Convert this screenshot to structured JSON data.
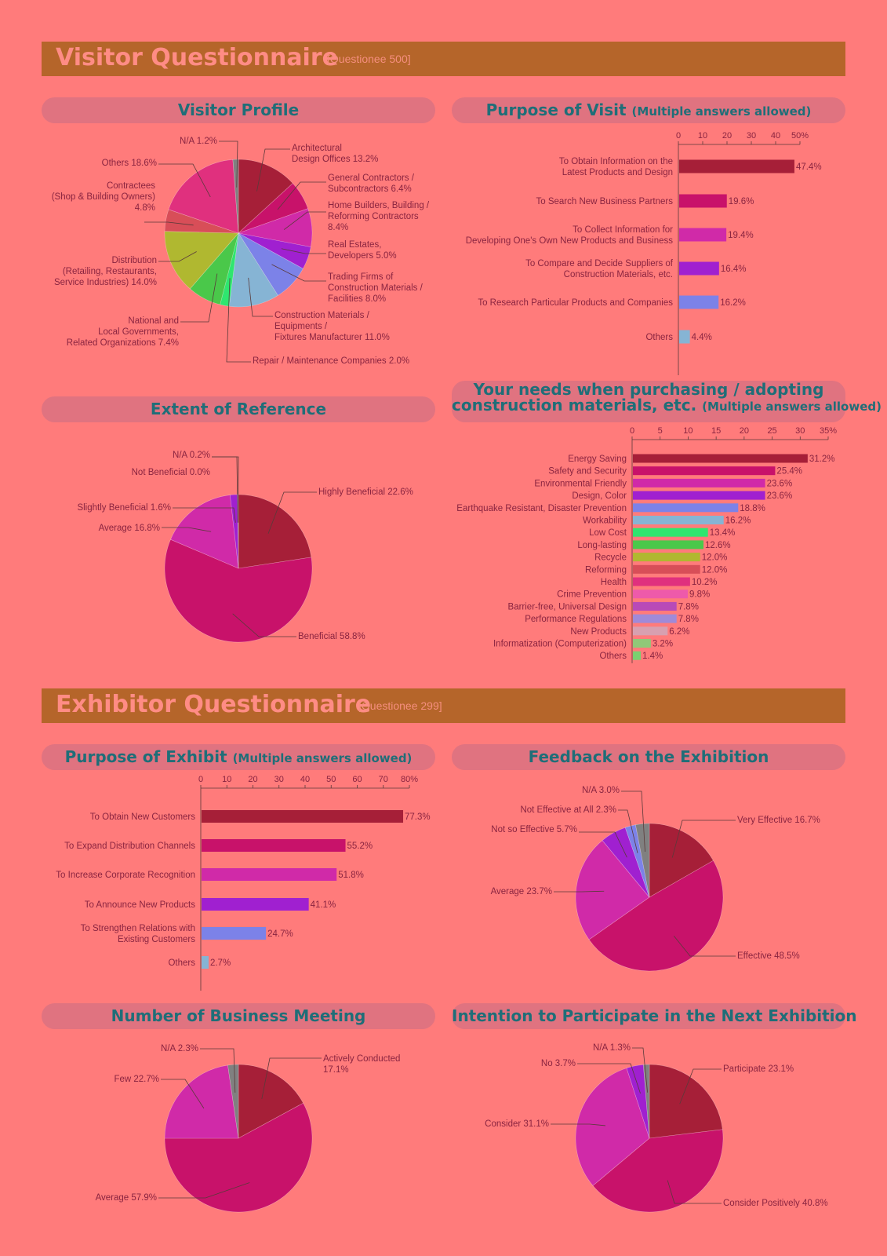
{
  "visitor_section": {
    "title": "Visitor Questionnaire",
    "note": "[Questionee 500]"
  },
  "exhibitor_section": {
    "title": "Exhibitor Questionnaire",
    "note": "[Questionee 299]"
  },
  "colors": {
    "background": "#FF7B7B",
    "banner": "#B5652A",
    "heading_text": "#1F6E78",
    "label_text": "#8A2440"
  },
  "chart_data": [
    {
      "id": "visitor_profile",
      "type": "pie",
      "title": "Visitor Profile",
      "slices": [
        {
          "label": "Architectural\nDesign Offices  13.2%",
          "value": 13.2,
          "color": "#A61F38"
        },
        {
          "label": "General Contractors /\nSubcontractors  6.4%",
          "value": 6.4,
          "color": "#C8126A"
        },
        {
          "label": "Home Builders, Building /\nReforming Contractors\n8.4%",
          "value": 8.4,
          "color": "#D02AA8"
        },
        {
          "label": "Real Estates,\nDevelopers  5.0%",
          "value": 5.0,
          "color": "#A020D0"
        },
        {
          "label": "Trading Firms of\nConstruction Materials /\nFacilities  8.0%",
          "value": 8.0,
          "color": "#7C82E8"
        },
        {
          "label": "Construction Materials /\nEquipments /\nFixtures Manufacturer  11.0%",
          "value": 11.0,
          "color": "#86B4D4"
        },
        {
          "label": "Repair / Maintenance Companies  2.0%",
          "value": 2.0,
          "color": "#2FE66F"
        },
        {
          "label": "National and\nLocal Governments,\nRelated Organizations  7.4%",
          "value": 7.4,
          "color": "#4AC84A"
        },
        {
          "label": "Distribution\n(Retailing, Restaurants,\nService Industries)  14.0%",
          "value": 14.0,
          "color": "#B0B830"
        },
        {
          "label": "Contractees\n(Shop & Building Owners)\n4.8%",
          "value": 4.8,
          "color": "#D84E58"
        },
        {
          "label": "Others  18.6%",
          "value": 18.6,
          "color": "#E0307E"
        },
        {
          "label": "N/A  1.2%",
          "value": 1.2,
          "color": "#808080"
        }
      ]
    },
    {
      "id": "purpose_of_visit",
      "type": "bar",
      "orientation": "horizontal",
      "title": "Purpose of Visit",
      "subtitle": "(Multiple answers allowed)",
      "xlim": [
        0,
        50
      ],
      "ticks": [
        0,
        10,
        20,
        30,
        40,
        50
      ],
      "tick_suffix_last": "%",
      "categories": [
        "To Obtain Information on the\nLatest Products and Design",
        "To Search New Business Partners",
        "To Collect Information for\nDeveloping One's Own New Products and Business",
        "To Compare and Decide Suppliers of\nConstruction Materials, etc.",
        "To Research Particular Products and Companies",
        "Others"
      ],
      "values": [
        47.4,
        19.6,
        19.4,
        16.4,
        16.2,
        4.4
      ],
      "labels": [
        "47.4%",
        "19.6%",
        "19.4%",
        "16.4%",
        "16.2%",
        "4.4%"
      ],
      "colors": [
        "#A61F38",
        "#C8126A",
        "#D02AA8",
        "#A020D0",
        "#7C82E8",
        "#86B4D4"
      ]
    },
    {
      "id": "extent_of_reference",
      "type": "pie",
      "title": "Extent of Reference",
      "slices": [
        {
          "label": "Highly Beneficial  22.6%",
          "value": 22.6,
          "color": "#A61F38"
        },
        {
          "label": "Beneficial  58.8%",
          "value": 58.8,
          "color": "#C8126A"
        },
        {
          "label": "Average  16.8%",
          "value": 16.8,
          "color": "#D02AA8"
        },
        {
          "label": "Slightly Beneficial  1.6%",
          "value": 1.6,
          "color": "#A020D0"
        },
        {
          "label": "Not Beneficial  0.0%",
          "value": 0.0,
          "color": "#7C82E8"
        },
        {
          "label": "N/A  0.2%",
          "value": 0.2,
          "color": "#808080"
        }
      ]
    },
    {
      "id": "purchasing_needs",
      "type": "bar",
      "orientation": "horizontal",
      "title": "Your needs when purchasing / adopting",
      "title_line2": "construction materials, etc.",
      "subtitle": "(Multiple answers allowed)",
      "xlim": [
        0,
        35
      ],
      "ticks": [
        0,
        5,
        10,
        15,
        20,
        25,
        30,
        35
      ],
      "tick_suffix_last": "%",
      "categories": [
        "Energy Saving",
        "Safety and Security",
        "Environmental Friendly",
        "Design, Color",
        "Earthquake Resistant, Disaster Prevention",
        "Workability",
        "Low Cost",
        "Long-lasting",
        "Recycle",
        "Reforming",
        "Health",
        "Crime Prevention",
        "Barrier-free, Universal Design",
        "Performance Regulations",
        "New Products",
        "Informatization (Computerization)",
        "Others"
      ],
      "values": [
        31.2,
        25.4,
        23.6,
        23.6,
        18.8,
        16.2,
        13.4,
        12.6,
        12.0,
        12.0,
        10.2,
        9.8,
        7.8,
        7.8,
        6.2,
        3.2,
        1.4
      ],
      "labels": [
        "31.2%",
        "25.4%",
        "23.6%",
        "23.6%",
        "18.8%",
        "16.2%",
        "13.4%",
        "12.6%",
        "12.0%",
        "12.0%",
        "10.2%",
        "9.8%",
        "7.8%",
        "7.8%",
        "6.2%",
        "3.2%",
        "1.4%"
      ],
      "colors": [
        "#A61F38",
        "#C8126A",
        "#D02AA8",
        "#A020D0",
        "#7C82E8",
        "#86B4D4",
        "#2FE66F",
        "#4AC84A",
        "#B0B830",
        "#D84E58",
        "#E0307E",
        "#EE5AAA",
        "#B84AB8",
        "#A08AD8",
        "#D8A0B0",
        "#90C878",
        "#7AD070"
      ]
    },
    {
      "id": "purpose_of_exhibit",
      "type": "bar",
      "orientation": "horizontal",
      "title": "Purpose of Exhibit",
      "subtitle": "(Multiple answers allowed)",
      "xlim": [
        0,
        80
      ],
      "ticks": [
        0,
        10,
        20,
        30,
        40,
        50,
        60,
        70,
        80
      ],
      "tick_suffix_last": "%",
      "categories": [
        "To Obtain New Customers",
        "To Expand Distribution Channels",
        "To Increase Corporate Recognition",
        "To Announce New Products",
        "To Strengthen Relations with\nExisting Customers",
        "Others"
      ],
      "values": [
        77.3,
        55.2,
        51.8,
        41.1,
        24.7,
        2.7
      ],
      "labels": [
        "77.3%",
        "55.2%",
        "51.8%",
        "41.1%",
        "24.7%",
        "2.7%"
      ],
      "colors": [
        "#A61F38",
        "#C8126A",
        "#D02AA8",
        "#A020D0",
        "#7C82E8",
        "#86B4D4"
      ]
    },
    {
      "id": "feedback",
      "type": "pie",
      "title": "Feedback on the Exhibition",
      "slices": [
        {
          "label": "Very Effective  16.7%",
          "value": 16.7,
          "color": "#A61F38"
        },
        {
          "label": "Effective  48.5%",
          "value": 48.5,
          "color": "#C8126A"
        },
        {
          "label": "Average  23.7%",
          "value": 23.7,
          "color": "#D02AA8"
        },
        {
          "label": "Not so Effective  5.7%",
          "value": 5.7,
          "color": "#A020D0"
        },
        {
          "label": "Not Effective at All  2.3%",
          "value": 2.3,
          "color": "#7C82E8"
        },
        {
          "label": "N/A  3.0%",
          "value": 3.0,
          "color": "#808080"
        }
      ]
    },
    {
      "id": "business_meeting",
      "type": "pie",
      "title": "Number of Business Meeting",
      "slices": [
        {
          "label": "Actively Conducted\n17.1%",
          "value": 17.1,
          "color": "#A61F38"
        },
        {
          "label": "Average  57.9%",
          "value": 57.9,
          "color": "#C8126A"
        },
        {
          "label": "Few  22.7%",
          "value": 22.7,
          "color": "#D02AA8"
        },
        {
          "label": "N/A  2.3%",
          "value": 2.3,
          "color": "#808080"
        }
      ]
    },
    {
      "id": "next_exhibition",
      "type": "pie",
      "title": "Intention to Participate in the Next Exhibition",
      "slices": [
        {
          "label": "Participate  23.1%",
          "value": 23.1,
          "color": "#A61F38"
        },
        {
          "label": "Consider Positively  40.8%",
          "value": 40.8,
          "color": "#C8126A"
        },
        {
          "label": "Consider  31.1%",
          "value": 31.1,
          "color": "#D02AA8"
        },
        {
          "label": "No  3.7%",
          "value": 3.7,
          "color": "#A020D0"
        },
        {
          "label": "N/A  1.3%",
          "value": 1.3,
          "color": "#808080"
        }
      ]
    }
  ]
}
